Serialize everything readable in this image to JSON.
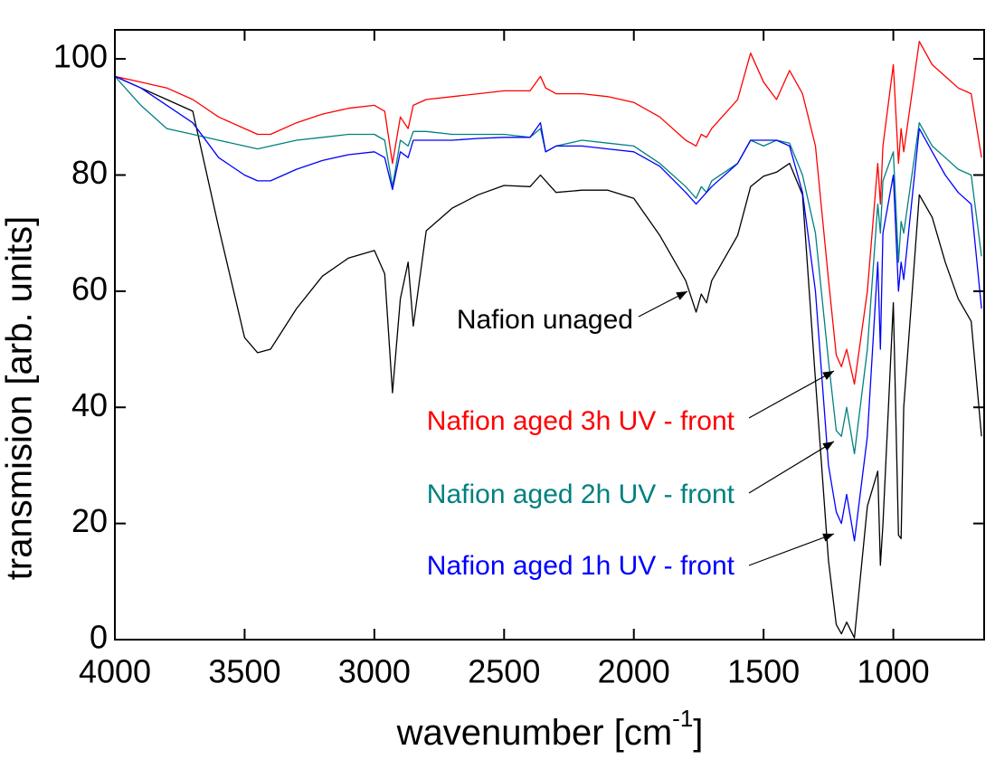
{
  "chart_data": {
    "type": "line",
    "x_label": [
      "wavenumber [cm",
      "-1",
      "]"
    ],
    "y_label": "transmision [arb. units]",
    "xlim": [
      4000,
      650
    ],
    "ylim": [
      0,
      105
    ],
    "xticks": [
      4000,
      3500,
      3000,
      2500,
      2000,
      1500,
      1000
    ],
    "yticks": [
      0,
      20,
      40,
      60,
      80,
      100
    ],
    "x": [
      4000,
      3900,
      3800,
      3700,
      3600,
      3500,
      3450,
      3400,
      3300,
      3200,
      3100,
      3000,
      2960,
      2930,
      2900,
      2870,
      2850,
      2800,
      2700,
      2600,
      2500,
      2400,
      2360,
      2340,
      2300,
      2200,
      2100,
      2000,
      1900,
      1800,
      1760,
      1740,
      1720,
      1700,
      1600,
      1550,
      1500,
      1450,
      1400,
      1350,
      1300,
      1250,
      1220,
      1200,
      1180,
      1150,
      1100,
      1060,
      1050,
      1040,
      1000,
      980,
      970,
      960,
      900,
      850,
      800,
      750,
      700,
      660
    ],
    "series": [
      {
        "name": "Nafion unaged",
        "color": "#000000",
        "values": [
          97,
          95,
          93,
          91,
          71,
          52,
          49.4,
          50,
          57,
          62.6,
          65.7,
          67,
          63,
          42.5,
          58.7,
          65,
          54,
          70.4,
          74.3,
          76.6,
          78.2,
          78,
          80,
          79,
          77,
          77.4,
          77.4,
          76,
          69.6,
          61.8,
          56.4,
          59.5,
          58,
          61.8,
          69.6,
          78,
          79.8,
          80.5,
          82,
          76.6,
          44.7,
          13.6,
          2.6,
          1,
          3,
          0.3,
          23,
          29,
          12.8,
          19.8,
          58,
          18,
          17.4,
          40,
          76.6,
          72.7,
          65,
          58.7,
          54.8,
          35
        ]
      },
      {
        "name": "Nafion aged 3h UV - front",
        "color": "#ff0000",
        "values": [
          97,
          96,
          95,
          93,
          90,
          88,
          87,
          87,
          89,
          90.5,
          91.5,
          92,
          91,
          82,
          90,
          88,
          92,
          93,
          93.5,
          94,
          94.5,
          94.5,
          97,
          95,
          94,
          94,
          93.5,
          92.5,
          90,
          86,
          85,
          87,
          86.5,
          88,
          93,
          101,
          96,
          93,
          98,
          94,
          85,
          62,
          49,
          47,
          50,
          44,
          60,
          82,
          75,
          85,
          99,
          82,
          88,
          84,
          103,
          99,
          97,
          95,
          94,
          83
        ]
      },
      {
        "name": "Nafion aged 2h UV - front",
        "color": "#008080",
        "values": [
          97,
          92,
          88,
          87,
          86,
          85,
          84.5,
          85,
          86,
          86.5,
          87,
          87,
          86,
          78,
          86,
          85,
          87.5,
          87.5,
          87,
          87,
          87,
          86.5,
          88,
          84,
          85,
          86,
          85.5,
          85,
          82,
          78,
          76,
          78,
          77,
          79,
          82,
          86,
          85,
          86,
          85.5,
          80,
          70,
          48,
          36,
          35,
          40,
          32,
          50,
          75,
          70,
          79,
          84,
          65,
          72,
          70,
          89,
          85,
          83,
          81,
          80,
          66
        ]
      },
      {
        "name": "Nafion aged 1h UV - front",
        "color": "#0000ff",
        "values": [
          97,
          95,
          92,
          89,
          83,
          80,
          79,
          79,
          81,
          82.5,
          83.5,
          84,
          83,
          77.5,
          84,
          83,
          86,
          86,
          86,
          86.3,
          86.5,
          86.5,
          89,
          84,
          85,
          85,
          84.5,
          84,
          81.5,
          77,
          75,
          76,
          77,
          78,
          82,
          86,
          86,
          86,
          85,
          77,
          60,
          30,
          22,
          20,
          25,
          17,
          35,
          65,
          50,
          70,
          80,
          60,
          65,
          62,
          88,
          84,
          80,
          77,
          75,
          57
        ]
      }
    ]
  }
}
